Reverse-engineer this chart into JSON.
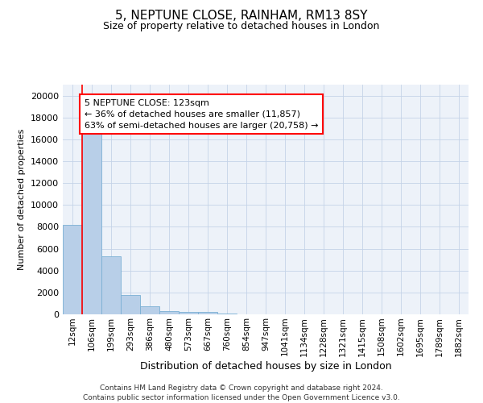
{
  "title1": "5, NEPTUNE CLOSE, RAINHAM, RM13 8SY",
  "title2": "Size of property relative to detached houses in London",
  "xlabel": "Distribution of detached houses by size in London",
  "ylabel": "Number of detached properties",
  "categories": [
    "12sqm",
    "106sqm",
    "199sqm",
    "293sqm",
    "386sqm",
    "480sqm",
    "573sqm",
    "667sqm",
    "760sqm",
    "854sqm",
    "947sqm",
    "1041sqm",
    "1134sqm",
    "1228sqm",
    "1321sqm",
    "1415sqm",
    "1508sqm",
    "1602sqm",
    "1695sqm",
    "1789sqm",
    "1882sqm"
  ],
  "values": [
    8200,
    16500,
    5300,
    1750,
    750,
    300,
    200,
    200,
    50,
    0,
    0,
    0,
    0,
    0,
    0,
    0,
    0,
    0,
    0,
    0,
    0
  ],
  "bar_color": "#b8cfe8",
  "bar_edge_color": "#7aafd4",
  "annotation_box_text": "5 NEPTUNE CLOSE: 123sqm\n← 36% of detached houses are smaller (11,857)\n63% of semi-detached houses are larger (20,758) →",
  "vline_x": 0.5,
  "ylim": [
    0,
    21000
  ],
  "yticks": [
    0,
    2000,
    4000,
    6000,
    8000,
    10000,
    12000,
    14000,
    16000,
    18000,
    20000
  ],
  "footer_line1": "Contains HM Land Registry data © Crown copyright and database right 2024.",
  "footer_line2": "Contains public sector information licensed under the Open Government Licence v3.0.",
  "bg_color": "#edf2f9",
  "grid_color": "#c5d3e8",
  "title1_fontsize": 11,
  "title2_fontsize": 9,
  "annotation_fontsize": 8,
  "xlabel_fontsize": 9,
  "ylabel_fontsize": 8
}
